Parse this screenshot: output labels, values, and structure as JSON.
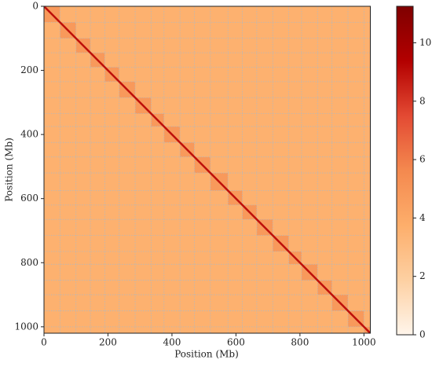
{
  "chart_data": {
    "type": "heatmap",
    "x_label": "Position (Mb)",
    "y_label": "Position (Mb)",
    "xlim": [
      0,
      1020
    ],
    "ylim": [
      0,
      1020
    ],
    "xticks": [
      0,
      200,
      400,
      600,
      800,
      1000
    ],
    "yticks": [
      0,
      200,
      400,
      600,
      800,
      1000
    ],
    "boundaries": [
      0,
      50,
      100,
      145,
      190,
      235,
      285,
      335,
      375,
      425,
      470,
      520,
      575,
      620,
      665,
      715,
      765,
      805,
      855,
      900,
      950,
      1000,
      1020
    ],
    "inter_value": 3.6,
    "intra_value": 4.8,
    "diagonal_value": 9,
    "colormap": [
      "#fff5eb",
      "#fdd0a2",
      "#fdae6b",
      "#f4894f",
      "#e34a33",
      "#b30000",
      "#7f0000"
    ],
    "colorbar": {
      "lim": [
        0,
        11.25
      ],
      "ticks": [
        0,
        2,
        4,
        6,
        8,
        10
      ]
    },
    "grid": true
  }
}
